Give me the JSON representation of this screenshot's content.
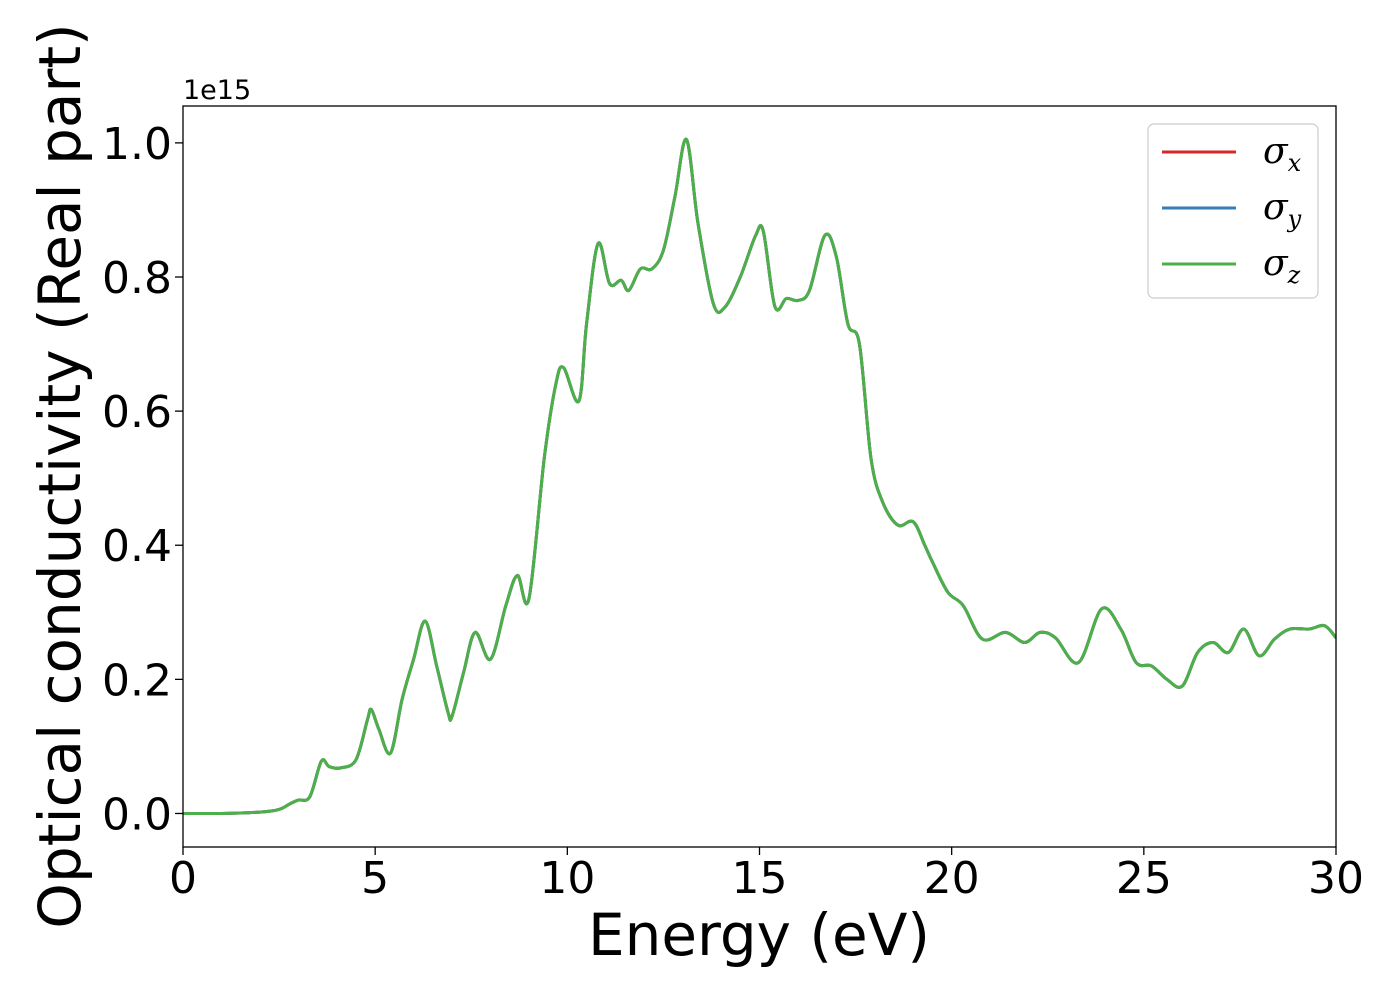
{
  "chart_data": {
    "type": "line",
    "xlabel": "Energy (eV)",
    "ylabel": "Optical conductivity (Real part)",
    "y_offset_label": "1e15",
    "xlim": [
      0,
      30
    ],
    "ylim": [
      -0.05,
      1.055
    ],
    "x_ticks": [
      0,
      5,
      10,
      15,
      20,
      25,
      30
    ],
    "x_tick_labels": [
      "0",
      "5",
      "10",
      "15",
      "20",
      "25",
      "30"
    ],
    "y_ticks": [
      0.0,
      0.2,
      0.4,
      0.6,
      0.8,
      1.0
    ],
    "y_tick_labels": [
      "0.0",
      "0.2",
      "0.4",
      "0.6",
      "0.8",
      "1.0"
    ],
    "grid": false,
    "legend_position": "top-right",
    "series": [
      {
        "name": "σ",
        "subscript": "x",
        "color": "#d62728"
      },
      {
        "name": "σ",
        "subscript": "y",
        "color": "#377eb8"
      },
      {
        "name": "σ",
        "subscript": "z",
        "color": "#4daf4a"
      }
    ],
    "x": [
      0,
      1,
      2,
      2.5,
      2.8,
      3.0,
      3.3,
      3.6,
      3.8,
      4.1,
      4.5,
      4.8,
      4.9,
      5.1,
      5.4,
      5.7,
      6.0,
      6.3,
      6.6,
      6.9,
      7.0,
      7.3,
      7.6,
      8.0,
      8.4,
      8.7,
      9.0,
      9.4,
      9.7,
      9.9,
      10.3,
      10.5,
      10.8,
      11.1,
      11.4,
      11.6,
      11.9,
      12.2,
      12.5,
      12.8,
      13.1,
      13.4,
      13.8,
      14.1,
      14.5,
      14.9,
      15.1,
      15.4,
      15.7,
      16.0,
      16.3,
      16.7,
      17.0,
      17.3,
      17.6,
      17.9,
      18.2,
      18.6,
      19.0,
      19.3,
      19.5,
      19.9,
      20.3,
      20.8,
      21.4,
      21.9,
      22.3,
      22.7,
      23.3,
      23.9,
      24.4,
      24.8,
      25.2,
      25.6,
      26.0,
      26.4,
      26.8,
      27.2,
      27.6,
      28.0,
      28.4,
      28.8,
      29.3,
      29.7,
      30.0
    ],
    "y": [
      0.0,
      0.0,
      0.002,
      0.006,
      0.015,
      0.02,
      0.025,
      0.078,
      0.07,
      0.068,
      0.08,
      0.14,
      0.155,
      0.125,
      0.09,
      0.17,
      0.23,
      0.287,
      0.22,
      0.15,
      0.145,
      0.21,
      0.27,
      0.23,
      0.31,
      0.355,
      0.32,
      0.53,
      0.64,
      0.665,
      0.615,
      0.73,
      0.85,
      0.79,
      0.795,
      0.78,
      0.812,
      0.812,
      0.84,
      0.92,
      1.005,
      0.88,
      0.76,
      0.755,
      0.8,
      0.862,
      0.868,
      0.756,
      0.768,
      0.765,
      0.78,
      0.862,
      0.83,
      0.73,
      0.7,
      0.53,
      0.465,
      0.43,
      0.435,
      0.4,
      0.375,
      0.33,
      0.31,
      0.26,
      0.27,
      0.255,
      0.27,
      0.262,
      0.225,
      0.305,
      0.275,
      0.225,
      0.22,
      0.2,
      0.19,
      0.24,
      0.255,
      0.24,
      0.275,
      0.235,
      0.26,
      0.275,
      0.275,
      0.28,
      0.262
    ]
  }
}
